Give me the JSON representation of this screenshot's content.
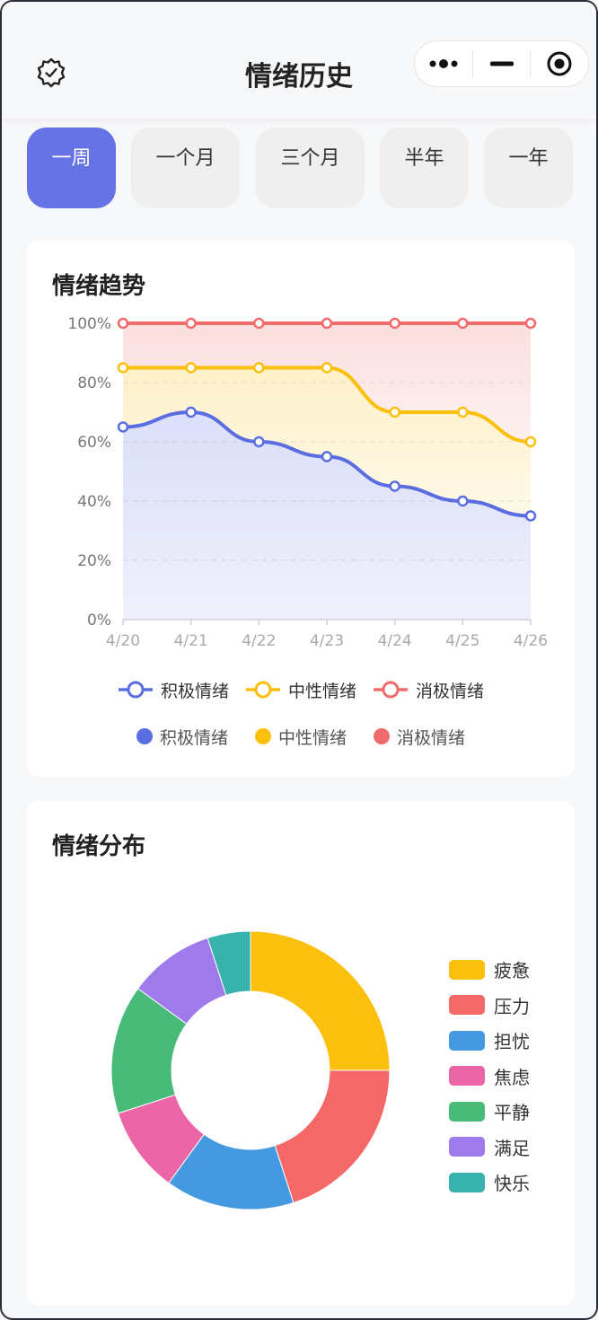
{
  "header": {
    "title": "情绪历史",
    "settings_icon": "settings-badge-icon",
    "capsule_icons": [
      "more-dots-icon",
      "minimize-icon",
      "close-circle-icon"
    ]
  },
  "tabs": [
    {
      "label": "一周",
      "active": true
    },
    {
      "label": "一个月",
      "active": false
    },
    {
      "label": "三个月",
      "active": false
    },
    {
      "label": "半年",
      "active": false
    },
    {
      "label": "一年",
      "active": false
    }
  ],
  "trend_card": {
    "title": "情绪趋势"
  },
  "distribution_card": {
    "title": "情绪分布"
  },
  "colors": {
    "accent": "#6673e6",
    "positive": "#5b6ee1",
    "neutral": "#fbbf0d",
    "negative": "#f06b6b"
  },
  "chart_data": [
    {
      "type": "area",
      "title": "情绪趋势",
      "categories": [
        "4/20",
        "4/21",
        "4/22",
        "4/23",
        "4/24",
        "4/25",
        "4/26"
      ],
      "ylim": [
        0,
        100
      ],
      "yticks": [
        "0%",
        "20%",
        "40%",
        "60%",
        "80%",
        "100%"
      ],
      "grid": true,
      "stacked_cumulative": true,
      "series": [
        {
          "name": "积极情绪",
          "color": "#5b6ee1",
          "values": [
            65,
            70,
            60,
            55,
            45,
            40,
            35
          ]
        },
        {
          "name": "中性情绪",
          "color": "#fbbf0d",
          "values": [
            85,
            85,
            85,
            85,
            70,
            70,
            60
          ]
        },
        {
          "name": "消极情绪",
          "color": "#f06b6b",
          "values": [
            100,
            100,
            100,
            100,
            100,
            100,
            100
          ]
        }
      ],
      "legend_line": [
        "积极情绪",
        "中性情绪",
        "消极情绪"
      ],
      "legend_dot": [
        "积极情绪",
        "中性情绪",
        "消极情绪"
      ]
    },
    {
      "type": "pie",
      "title": "情绪分布",
      "donut": true,
      "slices": [
        {
          "label": "疲惫",
          "value": 25,
          "color": "#fbbf0d"
        },
        {
          "label": "压力",
          "value": 20,
          "color": "#f56868"
        },
        {
          "label": "担忧",
          "value": 15,
          "color": "#4499e0"
        },
        {
          "label": "焦虑",
          "value": 10,
          "color": "#eb66a6"
        },
        {
          "label": "平静",
          "value": 15,
          "color": "#48bb78"
        },
        {
          "label": "满足",
          "value": 10,
          "color": "#9f7aea"
        },
        {
          "label": "快乐",
          "value": 5,
          "color": "#38b2ac"
        }
      ],
      "legend_position": "right"
    }
  ]
}
